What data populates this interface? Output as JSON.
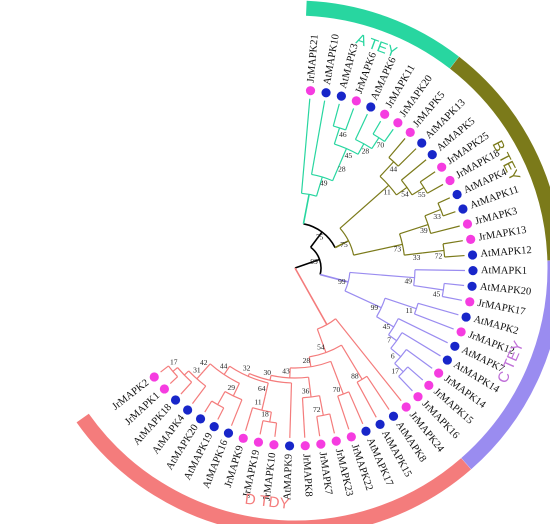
{
  "colors": {
    "d_tdy": "#f47c7c",
    "b_tey": "#7b7a1a",
    "a_tey": "#28d6a0",
    "c_tey": "#9a8cf0",
    "root": "#000000",
    "at_dot": "#1826c9",
    "jr_dot": "#f53ce0"
  },
  "clades": [
    {
      "id": "d_tdy",
      "label": "D TDY",
      "text_color": "#f47c7c"
    },
    {
      "id": "b_tey",
      "label": "B TEY",
      "text_color": "#7b7a1a"
    },
    {
      "id": "a_tey",
      "label": "A TEY",
      "text_color": "#28d6a0"
    },
    {
      "id": "c_tey",
      "label": "C TEY",
      "text_color": "#c070d8"
    }
  ],
  "tree": {
    "n": 0,
    "c": [
      {
        "n": 1,
        "b": "99",
        "c": [
          {
            "n": 2,
            "b": "75",
            "c": [
              {
                "n": 3,
                "clade": "a_tey",
                "c": [
                  {
                    "l": "JrMAPK21",
                    "sp": "jr"
                  },
                  {
                    "n": 4,
                    "b": "49",
                    "c": [
                      {
                        "l": "AtMAPK10",
                        "sp": "at"
                      },
                      {
                        "n": 5,
                        "b": "28",
                        "c": [
                          {
                            "n": 6,
                            "b": "45",
                            "c": [
                              {
                                "n": 7,
                                "b": "46",
                                "c": [
                                  {
                                    "l": "AtMAPK3",
                                    "sp": "at"
                                  },
                                  {
                                    "l": "JrMAPK6",
                                    "sp": "jr"
                                  }
                                ]
                              },
                              {
                                "n": 8,
                                "b": "28",
                                "c": [
                                  {
                                    "l": "AtMAPK6",
                                    "sp": "at"
                                  },
                                  {
                                    "n": 9,
                                    "b": "70",
                                    "c": [
                                      {
                                        "l": "JrMAPK11",
                                        "sp": "jr"
                                      },
                                      {
                                        "l": "JrMAPK20",
                                        "sp": "jr"
                                      }
                                    ]
                                  }
                                ]
                              }
                            ]
                          }
                        ]
                      }
                    ]
                  }
                ]
              },
              {
                "n": 10,
                "b": "75",
                "clade": "b_tey",
                "c": [
                  {
                    "n": 11,
                    "b": "11",
                    "c": [
                      {
                        "n": 12,
                        "b": "44",
                        "c": [
                          {
                            "l": "JrMAPK5",
                            "sp": "jr"
                          },
                          {
                            "l": "AtMAPK13",
                            "sp": "at"
                          }
                        ]
                      },
                      {
                        "n": 13,
                        "b": "54",
                        "c": [
                          {
                            "l": "AtMAPK5",
                            "sp": "at"
                          },
                          {
                            "n": 14,
                            "b": "55",
                            "c": [
                              {
                                "l": "JrMAPK25",
                                "sp": "jr"
                              },
                              {
                                "l": "JrMAPK18",
                                "sp": "jr"
                              }
                            ]
                          }
                        ]
                      }
                    ]
                  },
                  {
                    "n": 15,
                    "b": "73",
                    "c": [
                      {
                        "n": 16,
                        "b": "39",
                        "c": [
                          {
                            "n": 17,
                            "b": "33",
                            "c": [
                              {
                                "l": "AtMAPK4",
                                "sp": "at"
                              },
                              {
                                "l": "AtMAPK11",
                                "sp": "at"
                              }
                            ]
                          },
                          {
                            "l": "JrMAPK3",
                            "sp": "jr"
                          }
                        ]
                      },
                      {
                        "n": 18,
                        "b": "33",
                        "c": [
                          {
                            "n": 19,
                            "b": "72",
                            "c": [
                              {
                                "l": "JrMAPK13",
                                "sp": "jr"
                              },
                              {
                                "l": "AtMAPK12",
                                "sp": "at"
                              }
                            ]
                          }
                        ]
                      }
                    ]
                  }
                ]
              }
            ]
          },
          {
            "n": 20,
            "b": "99",
            "clade": "c_tey",
            "c": [
              {
                "n": 21,
                "b": "49",
                "c": [
                  {
                    "l": "AtMAPK1",
                    "sp": "at"
                  },
                  {
                    "n": 22,
                    "b": "45",
                    "c": [
                      {
                        "l": "AtMAPK20",
                        "sp": "at"
                      },
                      {
                        "l": "JrMAPK17",
                        "sp": "jr"
                      }
                    ]
                  }
                ]
              },
              {
                "n": 23,
                "b": "99",
                "c": [
                  {
                    "n": 24,
                    "b": "11",
                    "c": [
                      {
                        "l": "AtMAPK2",
                        "sp": "at"
                      },
                      {
                        "l": "JrMAPK12",
                        "sp": "jr"
                      }
                    ]
                  },
                  {
                    "n": 25,
                    "b": "45",
                    "c": [
                      {
                        "l": "AtMAPK7",
                        "sp": "at"
                      },
                      {
                        "n": 26,
                        "b": "7",
                        "c": [
                          {
                            "l": "AtMAPK14",
                            "sp": "at"
                          },
                          {
                            "n": 27,
                            "b": "6",
                            "c": [
                              {
                                "l": "JrMAPK14",
                                "sp": "jr"
                              },
                              {
                                "n": 28,
                                "b": "17",
                                "c": [
                                  {
                                    "l": "JrMAPK15",
                                    "sp": "jr"
                                  },
                                  {
                                    "l": "JrMAPK16",
                                    "sp": "jr"
                                  }
                                ]
                              }
                            ]
                          }
                        ]
                      }
                    ]
                  }
                ]
              }
            ]
          }
        ]
      },
      {
        "n": 29,
        "clade": "d_tdy",
        "c": [
          {
            "l": "JrMAPK24",
            "sp": "jr"
          },
          {
            "n": 30,
            "b": "54",
            "c": [
              {
                "n": 31,
                "b": "88",
                "c": [
                  {
                    "l": "AtMAPK8",
                    "sp": "at"
                  },
                  {
                    "l": "AtMAPK15",
                    "sp": "at"
                  }
                ]
              },
              {
                "n": 32,
                "b": "28",
                "c": [
                  {
                    "n": 33,
                    "b": "70",
                    "c": [
                      {
                        "l": "AtMAPK17",
                        "sp": "at"
                      },
                      {
                        "l": "JrMAPK22",
                        "sp": "jr"
                      }
                    ]
                  },
                  {
                    "n": 34,
                    "b": "43",
                    "c": [
                      {
                        "n": 35,
                        "b": "36",
                        "c": [
                          {
                            "n": 36,
                            "b": "72",
                            "c": [
                              {
                                "l": "JrMAPK23",
                                "sp": "jr"
                              },
                              {
                                "l": "JrMAPK7",
                                "sp": "jr"
                              }
                            ]
                          },
                          {
                            "l": "JrMAPK8",
                            "sp": "jr"
                          }
                        ]
                      },
                      {
                        "n": 37,
                        "b": "30",
                        "c": [
                          {
                            "l": "AtMAPK9",
                            "sp": "at"
                          },
                          {
                            "n": 38,
                            "b": "32",
                            "c": [
                              {
                                "n": 39,
                                "b": "64",
                                "c": [
                                  {
                                    "n": 40,
                                    "b": "11",
                                    "c": [
                                      {
                                        "n": 41,
                                        "b": "18",
                                        "c": [
                                          {
                                            "l": "JrMAPK10",
                                            "sp": "jr"
                                          },
                                          {
                                            "l": "JrMAPK19",
                                            "sp": "jr"
                                          }
                                        ]
                                      },
                                      {
                                        "l": "JrMAPK9",
                                        "sp": "jr"
                                      }
                                    ]
                                  }
                                ]
                              },
                              {
                                "n": 42,
                                "b": "44",
                                "c": [
                                  {
                                    "n": 43,
                                    "b": "29",
                                    "c": [
                                      {
                                        "l": "AtMAPK16",
                                        "sp": "at"
                                      },
                                      {
                                        "n": 44,
                                        "b": "",
                                        "c": [
                                          {
                                            "l": "AtMAPK19",
                                            "sp": "at"
                                          },
                                          {
                                            "l": "AtMAPK20",
                                            "sp": "at"
                                          }
                                        ]
                                      }
                                    ]
                                  },
                                  {
                                    "n": 45,
                                    "b": "42",
                                    "c": [
                                      {
                                        "n": 46,
                                        "b": "31",
                                        "c": [
                                          {
                                            "l": "AtMAPK4",
                                            "sp": "at"
                                          },
                                          {
                                            "n": 47,
                                            "b": "",
                                            "c": [
                                              {
                                                "l": "AtMAPK18",
                                                "sp": "at"
                                              },
                                              {
                                                "n": 48,
                                                "b": "17",
                                                "c": [
                                                  {
                                                    "l": "JrMAPK1",
                                                    "sp": "jr"
                                                  },
                                                  {
                                                    "l": "JrMAPK2",
                                                    "sp": "jr"
                                                  }
                                                ]
                                              }
                                            ]
                                          }
                                        ]
                                      }
                                    ]
                                  }
                                ]
                              }
                            ]
                          }
                        ]
                      }
                    ]
                  }
                ]
              }
            ]
          }
        ]
      }
    ]
  }
}
